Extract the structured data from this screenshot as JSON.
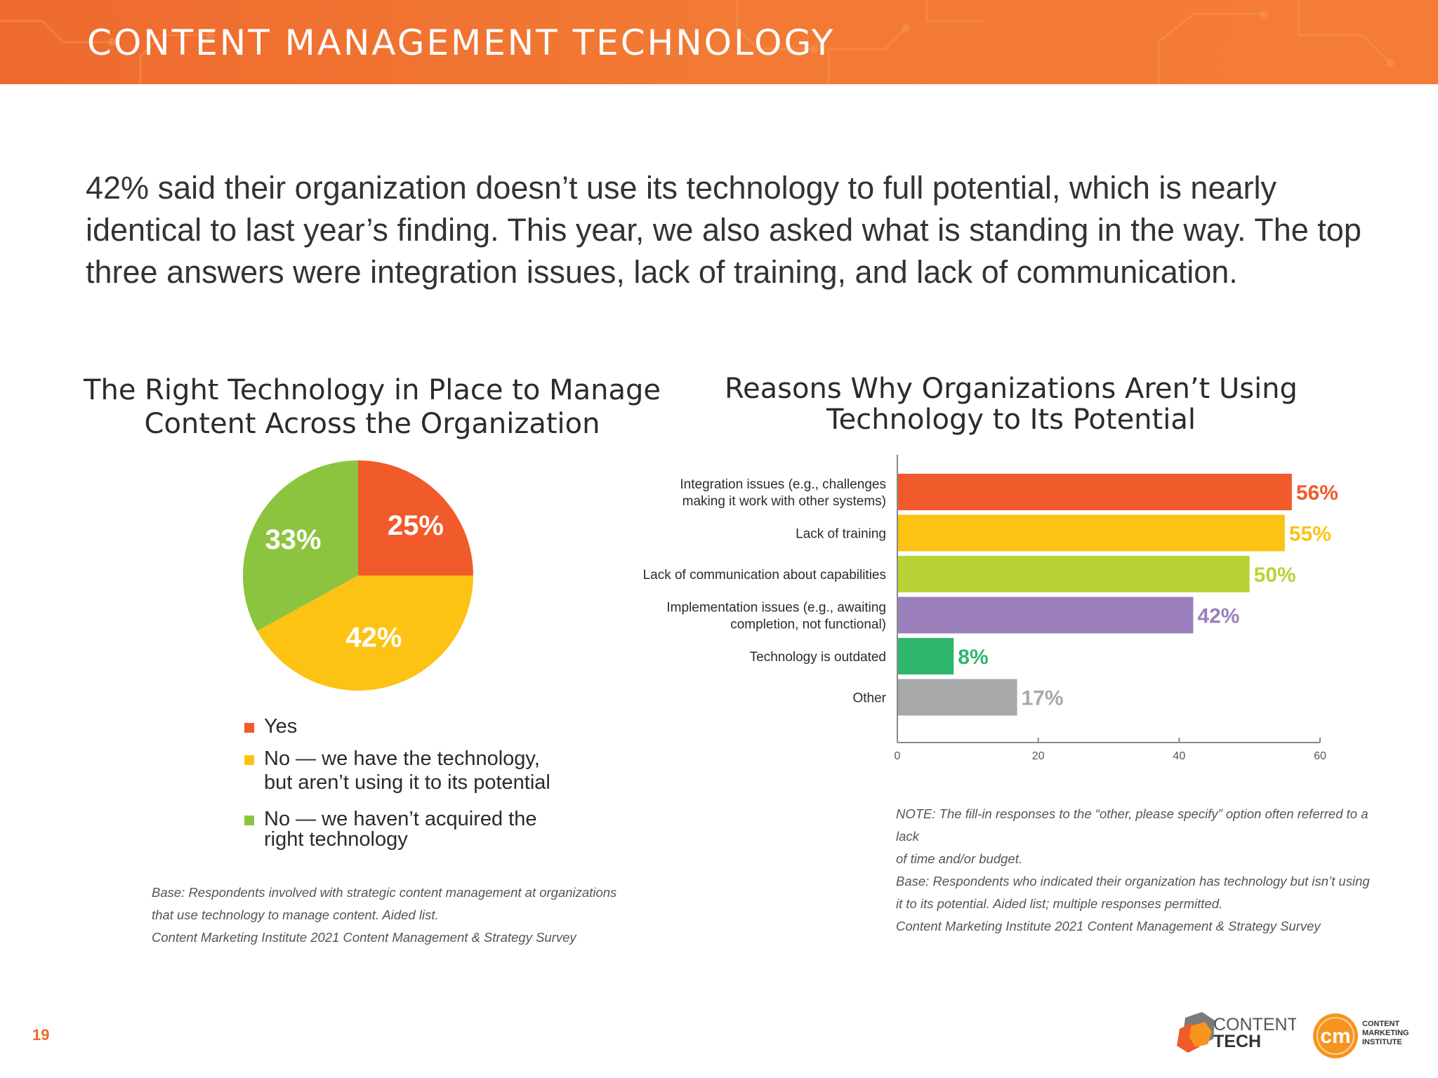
{
  "header": {
    "title": "CONTENT MANAGEMENT TECHNOLOGY"
  },
  "intro": {
    "text": "42% said their organization doesn’t use its technology to full potential, which is nearly identical to last year’s finding. This year, we also asked what is standing in the way. The top three answers were integration issues, lack of training, and lack of communication."
  },
  "chart_data": [
    {
      "type": "pie",
      "title_line1": "The Right Technology in Place to Manage",
      "title_line2": "Content Across the Organization",
      "slices": [
        {
          "label": "Yes",
          "value": 25,
          "display": "25%",
          "color": "#f15a2a"
        },
        {
          "label": "No — we have the technology, but aren’t using it to its potential",
          "value": 42,
          "display": "42%",
          "color": "#fcc314"
        },
        {
          "label": "No — we haven’t acquired the right technology",
          "value": 33,
          "display": "33%",
          "color": "#8cc43f"
        }
      ],
      "legend": [
        {
          "line1": "Yes",
          "line2": "",
          "color": "#f15a2a"
        },
        {
          "line1": "No — we have the technology,",
          "line2": "but aren’t using it to its potential",
          "color": "#fcc314"
        },
        {
          "line1": "No — we haven’t acquired the",
          "line2": "right technology",
          "color": "#8cc43f"
        }
      ],
      "legend_placement": "bottom",
      "base_note": [
        "Base: Respondents involved with strategic content management at organizations",
        "that use technology  to manage content. Aided list.",
        "Content Marketing Institute 2021 Content Management & Strategy Survey"
      ]
    },
    {
      "type": "bar",
      "orientation": "horizontal",
      "title_line1": "Reasons Why Organizations Aren’t Using",
      "title_line2": "Technology to Its Potential",
      "categories": [
        [
          "Integration issues (e.g., challenges",
          "making it work with other systems)"
        ],
        [
          "Lack of training"
        ],
        [
          "Lack of communication about capabilities"
        ],
        [
          "Implementation issues (e.g., awaiting",
          "completion, not functional)"
        ],
        [
          "Technology is outdated"
        ],
        [
          "Other"
        ]
      ],
      "values": [
        56,
        55,
        50,
        42,
        8,
        17
      ],
      "value_labels": [
        "56%",
        "55%",
        "50%",
        "42%",
        "8%",
        "17%"
      ],
      "colors": [
        "#f15a2a",
        "#fcc314",
        "#b8d335",
        "#9b7fbb",
        "#2eb66b",
        "#a7a8aa"
      ],
      "label_colors": [
        "#f15a2a",
        "#fcc314",
        "#b8d335",
        "#9b7fbb",
        "#2eb66b",
        "#a7a8aa"
      ],
      "xlim": [
        0,
        60
      ],
      "xticks": [
        0,
        20,
        40,
        60
      ],
      "grid": false,
      "note": [
        "NOTE: The fill-in responses to the “other, please specify” option often referred to a lack",
        "of time and/or budget."
      ],
      "base_note": [
        "Base: Respondents who indicated their organization has technology but isn’t using",
        "it to its potential. Aided list; multiple responses permitted.",
        "Content Marketing Institute 2021 Content Management & Strategy Survey"
      ]
    }
  ],
  "footer": {
    "page_number": "19",
    "logo_contenttech": {
      "line1": "CONTENT",
      "line2": "TECH"
    },
    "logo_cmi": {
      "mark": "cm",
      "line1": "CONTENT",
      "line2": "MARKETING",
      "line3": "INSTITUTE"
    }
  },
  "colors": {
    "brand_orange": "#ee6a2e"
  }
}
